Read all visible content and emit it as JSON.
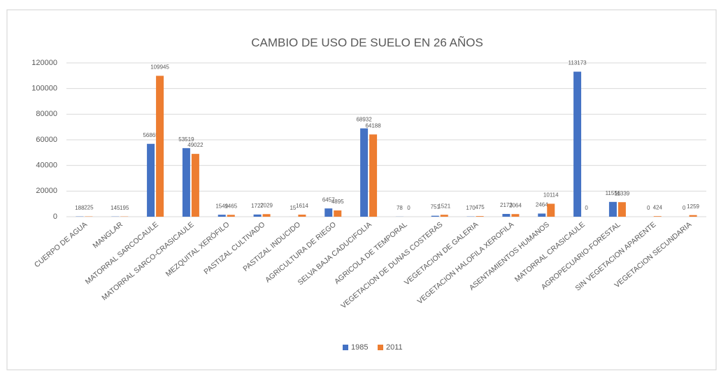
{
  "chart_data": {
    "type": "bar",
    "title": "CAMBIO DE USO DE SUELO EN 26 AÑOS",
    "categories": [
      "CUERPO DE AGUA",
      "MANGLAR",
      "MATORRAL SARCOCAULE",
      "MATORRAL SARCO-CRASICAULE",
      "MEZQUITAL XERÓFILO",
      "PASTIZAL CULTIVADO",
      "PASTIZAL INDUCIDO",
      "AGRICULTURA DE RIEGO",
      "SELVA BAJA CADUCIFOLIA",
      "AGRICOLA DE TEMPORAL",
      "VEGETACION DE DUNAS COSTERAS",
      "VEGETACION DE GALERIA",
      "VEGETACION HALOFILA XEROFILA",
      "ASENTAMIENTOS HUMANOS",
      "MATORRAL CRASICAULE",
      "AGROPECUARIO-FORESTAL",
      "SIN VEGETACION APARENTE",
      "VEGETACION SECUNDARIA"
    ],
    "series": [
      {
        "name": "1985",
        "color": "#4472c4",
        "values": [
          188,
          145,
          56865,
          53519,
          1549,
          1727,
          15,
          6457,
          68932,
          78,
          751,
          170,
          2173,
          2464,
          113173,
          11556,
          0,
          0
        ]
      },
      {
        "name": "2011",
        "color": "#ed7d31",
        "values": [
          225,
          195,
          109945,
          49022,
          1465,
          2029,
          1614,
          4895,
          64188,
          0,
          1521,
          475,
          2064,
          10114,
          0,
          11339,
          424,
          1259
        ]
      }
    ],
    "ylim": [
      0,
      120000
    ],
    "yticks": [
      0,
      20000,
      40000,
      60000,
      80000,
      100000,
      120000
    ],
    "grid": true,
    "legend": "bottom"
  }
}
